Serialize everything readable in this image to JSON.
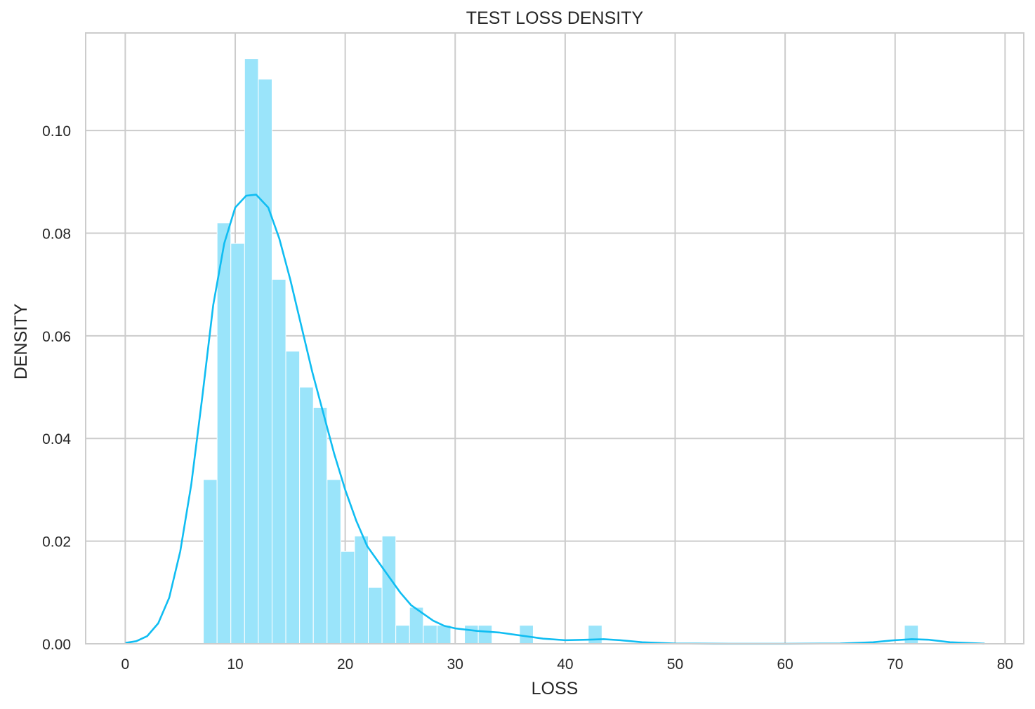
{
  "chart_data": {
    "type": "bar",
    "title": "TEST LOSS DENSITY",
    "xlabel": "LOSS",
    "ylabel": "DENSITY",
    "xlim": [
      -3.6,
      81.7
    ],
    "ylim": [
      0,
      0.119
    ],
    "x_ticks": [
      0,
      10,
      20,
      30,
      40,
      50,
      60,
      70,
      80
    ],
    "y_ticks": [
      0.0,
      0.02,
      0.04,
      0.06,
      0.08,
      0.1
    ],
    "x_tick_labels": [
      "0",
      "10",
      "20",
      "30",
      "40",
      "50",
      "60",
      "70",
      "80"
    ],
    "y_tick_labels": [
      "0.00",
      "0.02",
      "0.04",
      "0.06",
      "0.08",
      "0.10"
    ],
    "grid": true,
    "histogram": {
      "bin_edges": [
        7.1,
        8.35,
        9.6,
        10.85,
        12.1,
        13.35,
        14.6,
        15.85,
        17.1,
        18.35,
        19.6,
        20.85,
        22.1,
        23.35,
        24.6,
        25.85,
        27.1,
        28.35,
        29.6,
        30.85,
        32.1,
        33.35,
        34.6,
        35.85,
        37.1,
        38.35,
        39.6,
        40.85,
        42.1,
        43.35,
        44.6,
        45.85,
        47.1,
        48.35,
        49.6,
        50.85,
        52.1,
        53.35,
        54.6,
        55.85,
        57.1,
        58.35,
        59.6,
        60.85,
        62.1,
        63.35,
        64.6,
        65.85,
        67.1,
        68.35,
        69.6,
        70.85,
        72.1
      ],
      "density": [
        0.032,
        0.082,
        0.078,
        0.114,
        0.11,
        0.071,
        0.057,
        0.05,
        0.046,
        0.032,
        0.018,
        0.021,
        0.011,
        0.021,
        0.0036,
        0.0071,
        0.0036,
        0.0036,
        0,
        0.0036,
        0.0036,
        0,
        0,
        0.0036,
        0,
        0,
        0,
        0,
        0.0036,
        0,
        0,
        0,
        0,
        0,
        0,
        0,
        0,
        0,
        0,
        0,
        0,
        0,
        0,
        0,
        0,
        0,
        0,
        0,
        0,
        0,
        0,
        0.0036
      ],
      "color": "#9ae4fa"
    },
    "series": [
      {
        "type": "line",
        "name": "",
        "color": "#10bdf2",
        "x": [
          0.1,
          1,
          2,
          3,
          4,
          5,
          6,
          7,
          8,
          9,
          10,
          11,
          11.9,
          13,
          14,
          15,
          16,
          17,
          18,
          19,
          20,
          21,
          22,
          23,
          24,
          25,
          26,
          27,
          28,
          29,
          30,
          32,
          34,
          36,
          38,
          40,
          42,
          43.5,
          45,
          47,
          50,
          55,
          60,
          65,
          68,
          70,
          71.5,
          73,
          75,
          78.1
        ],
        "y": [
          0.0002,
          0.0005,
          0.0015,
          0.004,
          0.009,
          0.018,
          0.031,
          0.048,
          0.066,
          0.078,
          0.085,
          0.0873,
          0.0875,
          0.085,
          0.079,
          0.071,
          0.062,
          0.053,
          0.045,
          0.037,
          0.03,
          0.024,
          0.019,
          0.016,
          0.013,
          0.01,
          0.0075,
          0.006,
          0.0045,
          0.0035,
          0.003,
          0.0025,
          0.0022,
          0.0016,
          0.001,
          0.0007,
          0.0008,
          0.0009,
          0.0007,
          0.0003,
          5e-05,
          0,
          0,
          5e-05,
          0.0003,
          0.0007,
          0.0009,
          0.0008,
          0.0003,
          2e-05
        ]
      }
    ]
  }
}
